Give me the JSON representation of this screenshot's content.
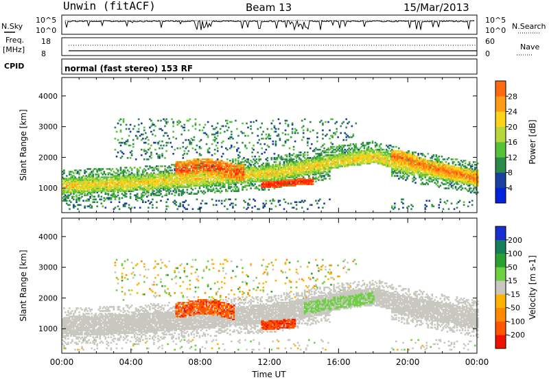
{
  "header": {
    "station": "Unwin (fitACF)",
    "beam": "Beam 13",
    "date": "15/Mar/2013"
  },
  "panel_labels": {
    "nsky": "N.Sky",
    "nsky_hi": "10^5",
    "nsky_lo": "10^0",
    "nsearch": "N.Search",
    "nsearch_hi": "10^5",
    "nsearch_lo": "10^0",
    "freq": "Freq.",
    "freq_unit": "[MHz]",
    "freq_hi": "18",
    "freq_lo": "8",
    "nave": "Nave",
    "nave_hi": "60",
    "nave_lo": "0",
    "cpid": "CPID",
    "cpid_value": "normal (fast stereo) 153 RF"
  },
  "colors": {
    "power": [
      "#0022dd",
      "#1a3fa0",
      "#2a8a4a",
      "#55c23a",
      "#b7d83a",
      "#ffd21a",
      "#ff9c16",
      "#ff6a10",
      "#ff2a08",
      "#dd0000"
    ],
    "velocity_neg": [
      "#ee1100",
      "#ff5500",
      "#ff8a00",
      "#ffb200"
    ],
    "velocity_neu": "#c8c8c0",
    "velocity_pos": [
      "#6cd040",
      "#2aa030",
      "#157e5a",
      "#1a2fd0"
    ]
  },
  "chart_data": [
    {
      "type": "heatmap",
      "name": "power",
      "xlabel": "",
      "ylabel": "Slant Range [km]",
      "x_unit": "hours UT",
      "xlim": [
        0,
        24
      ],
      "ylim": [
        200,
        4600
      ],
      "yticks": [
        "1000",
        "2000",
        "3000",
        "4000"
      ],
      "colorbar": {
        "label": "Power [dB]",
        "ticks": [
          "4",
          "8",
          "12",
          "16",
          "20",
          "24",
          "28"
        ],
        "range": [
          0,
          32
        ]
      },
      "features": [
        {
          "x_start": 0,
          "x_end": 24,
          "desc": "main band",
          "range_at": [
            [
              0,
              1050
            ],
            [
              4,
              1150
            ],
            [
              8,
              1300
            ],
            [
              10,
              1400
            ],
            [
              12,
              1450
            ],
            [
              14,
              1650
            ],
            [
              16,
              1850
            ],
            [
              18,
              2000
            ],
            [
              20,
              1700
            ],
            [
              22,
              1500
            ],
            [
              24,
              1300
            ]
          ]
        },
        {
          "x_start": 6.5,
          "x_end": 10.5,
          "desc": "enhanced",
          "range_at": [
            [
              7,
              1600
            ],
            [
              8,
              1700
            ],
            [
              9,
              1650
            ],
            [
              10,
              1500
            ]
          ],
          "power": 26
        },
        {
          "x_start": 11.5,
          "x_end": 14.5,
          "desc": "strong",
          "range_at": [
            [
              12,
              1100
            ],
            [
              13,
              1150
            ],
            [
              14,
              1200
            ]
          ],
          "power": 28
        },
        {
          "x_start": 19,
          "x_end": 24,
          "desc": "afternoon band",
          "range_at": [
            [
              19.5,
              2000
            ],
            [
              21,
              1700
            ],
            [
              22.5,
              1500
            ],
            [
              24,
              1300
            ]
          ],
          "power": 24
        }
      ]
    },
    {
      "type": "heatmap",
      "name": "velocity",
      "xlabel": "Time UT",
      "ylabel": "Slant Range [km]",
      "x_unit": "hours UT",
      "xlim": [
        0,
        24
      ],
      "ylim": [
        200,
        4600
      ],
      "xticks": [
        "00:00",
        "04:00",
        "08:00",
        "12:00",
        "16:00",
        "20:00",
        "00:00"
      ],
      "yticks": [
        "1000",
        "2000",
        "3000",
        "4000"
      ],
      "colorbar": {
        "label": "Velocity [m s-1]",
        "ticks": [
          "-200",
          "-100",
          "-50",
          "-15",
          "15",
          "50",
          "100",
          "200"
        ],
        "range": [
          -250,
          250
        ]
      },
      "features": [
        {
          "x_start": 0,
          "x_end": 24,
          "desc": "ground scatter (grey)",
          "velocity": 0
        },
        {
          "x_start": 6.5,
          "x_end": 10,
          "desc": "negative velocity",
          "velocity": -150
        },
        {
          "x_start": 11.5,
          "x_end": 13.5,
          "desc": "negative velocity",
          "velocity": -180
        },
        {
          "x_start": 14,
          "x_end": 18,
          "desc": "positive velocity",
          "velocity": 30
        }
      ]
    }
  ]
}
